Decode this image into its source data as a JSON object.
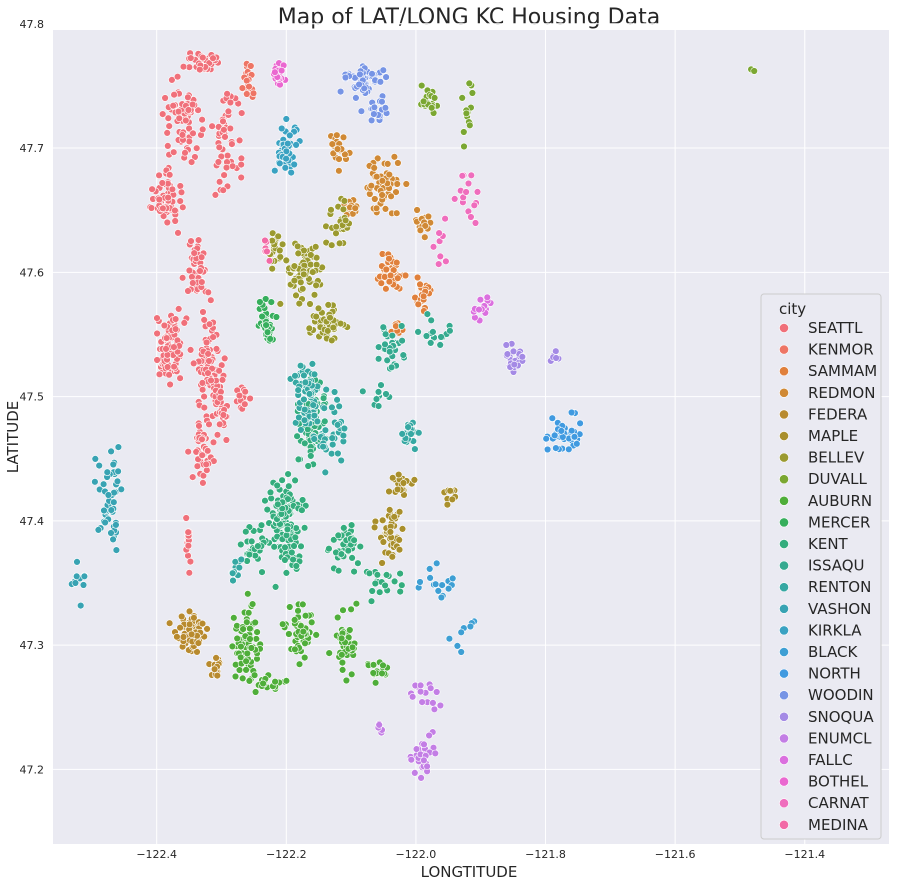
{
  "chart_data": {
    "type": "scatter",
    "title": "Map of LAT/LONG KC Housing Data",
    "xlabel": "LONGTITUDE",
    "ylabel": "LATITUDE",
    "xlim": [
      -122.56,
      -121.27
    ],
    "ylim": [
      47.14,
      47.795
    ],
    "grid": true,
    "x_ticks": [
      -122.4,
      -122.2,
      -122.0,
      -121.8,
      -121.6,
      -121.4
    ],
    "x_tick_labels": [
      "−122.4",
      "−122.2",
      "−122.0",
      "−121.8",
      "−121.6",
      "−121.4"
    ],
    "y_ticks": [
      47.2,
      47.3,
      47.4,
      47.5,
      47.6,
      47.7,
      47.8
    ],
    "y_tick_labels": [
      "47.2",
      "47.3",
      "47.4",
      "47.5",
      "47.6",
      "47.7",
      "47.8"
    ],
    "legend": {
      "title": "city",
      "placement": "center-right"
    },
    "series": [
      {
        "name": "SEATTL",
        "color": "#f0707a",
        "regions": [
          [
            -122.36,
            47.72,
            0.045,
            0.05,
            70
          ],
          [
            -122.38,
            47.66,
            0.04,
            0.035,
            60
          ],
          [
            -122.29,
            47.7,
            0.035,
            0.06,
            50
          ],
          [
            -122.34,
            47.6,
            0.025,
            0.04,
            45
          ],
          [
            -122.38,
            47.54,
            0.03,
            0.05,
            80
          ],
          [
            -122.32,
            47.53,
            0.03,
            0.07,
            80
          ],
          [
            -122.33,
            47.46,
            0.025,
            0.04,
            40
          ],
          [
            -122.3,
            47.49,
            0.02,
            0.03,
            30
          ],
          [
            -122.35,
            47.38,
            0.01,
            0.04,
            20
          ],
          [
            -122.33,
            47.77,
            0.05,
            0.01,
            30
          ],
          [
            -122.27,
            47.5,
            0.02,
            0.02,
            15
          ]
        ]
      },
      {
        "name": "KENMOR",
        "color": "#ee7565",
        "regions": [
          [
            -122.26,
            47.755,
            0.015,
            0.02,
            25
          ]
        ]
      },
      {
        "name": "SAMMAM",
        "color": "#e0803c",
        "regions": [
          [
            -122.04,
            47.6,
            0.03,
            0.025,
            55
          ],
          [
            -121.99,
            47.58,
            0.02,
            0.02,
            25
          ],
          [
            -122.03,
            47.555,
            0.015,
            0.01,
            10
          ]
        ]
      },
      {
        "name": "REDMON",
        "color": "#d08935",
        "regions": [
          [
            -122.05,
            47.67,
            0.04,
            0.035,
            60
          ],
          [
            -122.12,
            47.7,
            0.02,
            0.02,
            20
          ],
          [
            -121.99,
            47.64,
            0.02,
            0.02,
            20
          ],
          [
            -122.1,
            47.65,
            0.02,
            0.015,
            15
          ]
        ]
      },
      {
        "name": "FEDERA",
        "color": "#b88a2e",
        "regions": [
          [
            -122.35,
            47.31,
            0.035,
            0.025,
            70
          ],
          [
            -122.31,
            47.28,
            0.015,
            0.02,
            15
          ]
        ]
      },
      {
        "name": "MAPLE",
        "color": "#a98f2c",
        "regions": [
          [
            -122.04,
            47.39,
            0.03,
            0.035,
            45
          ],
          [
            -122.02,
            47.43,
            0.03,
            0.015,
            20
          ],
          [
            -121.95,
            47.42,
            0.02,
            0.01,
            10
          ]
        ]
      },
      {
        "name": "BELLEV",
        "color": "#9b9a30",
        "regions": [
          [
            -122.17,
            47.6,
            0.05,
            0.04,
            70
          ],
          [
            -122.14,
            47.56,
            0.04,
            0.02,
            50
          ],
          [
            -122.12,
            47.64,
            0.03,
            0.03,
            30
          ],
          [
            -122.22,
            47.62,
            0.02,
            0.02,
            20
          ]
        ]
      },
      {
        "name": "DUVALL",
        "color": "#7ba732",
        "regions": [
          [
            -121.98,
            47.74,
            0.02,
            0.02,
            20
          ],
          [
            -121.92,
            47.73,
            0.015,
            0.04,
            15
          ],
          [
            -121.48,
            47.763,
            0.006,
            0.005,
            3
          ]
        ]
      },
      {
        "name": "AUBURN",
        "color": "#4fae3a",
        "regions": [
          [
            -122.26,
            47.3,
            0.03,
            0.045,
            80
          ],
          [
            -122.18,
            47.31,
            0.03,
            0.04,
            50
          ],
          [
            -122.11,
            47.3,
            0.03,
            0.05,
            40
          ],
          [
            -122.06,
            47.28,
            0.04,
            0.02,
            15
          ],
          [
            -122.23,
            47.27,
            0.04,
            0.01,
            20
          ]
        ]
      },
      {
        "name": "MERCER",
        "color": "#36ae5c",
        "regions": [
          [
            -122.23,
            47.56,
            0.02,
            0.03,
            40
          ]
        ]
      },
      {
        "name": "KENT",
        "color": "#34ad7d",
        "regions": [
          [
            -122.2,
            47.4,
            0.04,
            0.07,
            130
          ],
          [
            -122.16,
            47.48,
            0.04,
            0.05,
            80
          ],
          [
            -122.11,
            47.38,
            0.04,
            0.03,
            40
          ],
          [
            -122.05,
            47.35,
            0.05,
            0.02,
            20
          ],
          [
            -122.25,
            47.38,
            0.03,
            0.03,
            30
          ]
        ]
      },
      {
        "name": "ISSAQU",
        "color": "#35aa90",
        "regions": [
          [
            -122.04,
            47.54,
            0.04,
            0.03,
            30
          ],
          [
            -121.97,
            47.55,
            0.04,
            0.02,
            15
          ],
          [
            -122.06,
            47.5,
            0.04,
            0.02,
            10
          ]
        ]
      },
      {
        "name": "RENTON",
        "color": "#36a8a3",
        "regions": [
          [
            -122.17,
            47.5,
            0.03,
            0.04,
            60
          ],
          [
            -122.13,
            47.47,
            0.04,
            0.04,
            40
          ],
          [
            -122.01,
            47.47,
            0.03,
            0.02,
            20
          ],
          [
            -122.28,
            47.36,
            0.015,
            0.02,
            10
          ]
        ]
      },
      {
        "name": "VASHON",
        "color": "#38a3b3",
        "regions": [
          [
            -122.47,
            47.42,
            0.04,
            0.07,
            50
          ],
          [
            -122.52,
            47.35,
            0.02,
            0.03,
            10
          ]
        ]
      },
      {
        "name": "KIRKLA",
        "color": "#3aa2c2",
        "regions": [
          [
            -122.2,
            47.7,
            0.025,
            0.03,
            50
          ]
        ]
      },
      {
        "name": "BLACK",
        "color": "#3e9fd4",
        "regions": [
          [
            -121.97,
            47.35,
            0.05,
            0.02,
            15
          ],
          [
            -121.93,
            47.31,
            0.03,
            0.02,
            8
          ]
        ]
      },
      {
        "name": "NORTH",
        "color": "#409ae0",
        "regions": [
          [
            -121.77,
            47.47,
            0.04,
            0.025,
            45
          ]
        ]
      },
      {
        "name": "WOODIN",
        "color": "#7694e5",
        "regions": [
          [
            -122.08,
            47.755,
            0.05,
            0.02,
            60
          ],
          [
            -122.06,
            47.73,
            0.03,
            0.015,
            20
          ]
        ]
      },
      {
        "name": "SNOQUA",
        "color": "#a48ae5",
        "regions": [
          [
            -121.85,
            47.53,
            0.03,
            0.02,
            25
          ],
          [
            -121.79,
            47.53,
            0.02,
            0.01,
            6
          ]
        ]
      },
      {
        "name": "ENUMCL",
        "color": "#c37ee5",
        "regions": [
          [
            -121.99,
            47.21,
            0.03,
            0.025,
            30
          ],
          [
            -121.98,
            47.26,
            0.04,
            0.02,
            15
          ],
          [
            -122.05,
            47.23,
            0.02,
            0.01,
            5
          ]
        ]
      },
      {
        "name": "FALLC",
        "color": "#db70df",
        "regions": [
          [
            -121.9,
            47.57,
            0.03,
            0.02,
            15
          ]
        ]
      },
      {
        "name": "BOTHEL",
        "color": "#ea68d0",
        "regions": [
          [
            -122.21,
            47.76,
            0.015,
            0.015,
            25
          ]
        ]
      },
      {
        "name": "CARNAT",
        "color": "#ef6dbd",
        "regions": [
          [
            -121.92,
            47.66,
            0.04,
            0.03,
            15
          ],
          [
            -121.96,
            47.62,
            0.015,
            0.03,
            8
          ]
        ]
      },
      {
        "name": "MEDINA",
        "color": "#f26aa6",
        "regions": [
          [
            -122.23,
            47.62,
            0.01,
            0.015,
            8
          ]
        ]
      }
    ]
  }
}
